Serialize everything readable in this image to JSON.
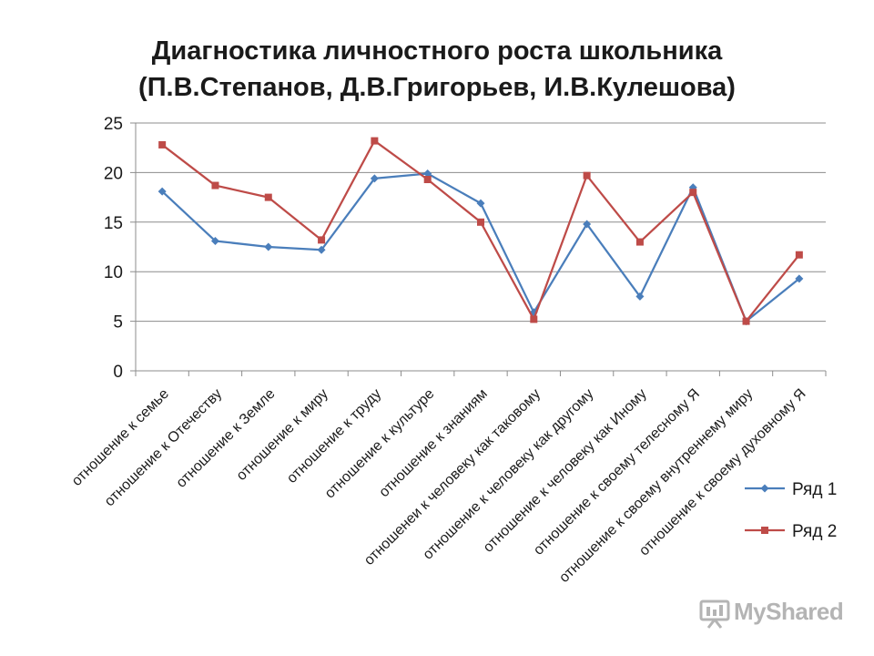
{
  "title": {
    "line1": "Диагностика личностного роста школьника",
    "line2": "(П.В.Степанов, Д.В.Григорьев, И.В.Кулешова)"
  },
  "chart_data": {
    "type": "line",
    "categories": [
      "отношение к семье",
      "отношение к Отечеству",
      "отношение к Земле",
      "отношение к миру",
      "отношение к труду",
      "отношение к культуре",
      "отношение к знаниям",
      "отношенеи к человеку как таковому",
      "отношение к человеку как другому",
      "отношение к человеку как Иному",
      "отношение к своему телесному Я",
      "отношение к своему внутреннему миру",
      "отношение к своему духовному Я"
    ],
    "y_ticks": [
      "0",
      "5",
      "10",
      "15",
      "20",
      "25"
    ],
    "ylim": [
      0,
      25
    ],
    "grid": true,
    "legend_position": "right",
    "series": [
      {
        "name": "Ряд 1",
        "color": "#4a7ebb",
        "marker": "diamond",
        "values": [
          18.1,
          13.1,
          12.5,
          12.2,
          19.4,
          19.9,
          16.9,
          5.9,
          14.8,
          7.5,
          18.5,
          5.0,
          9.3
        ]
      },
      {
        "name": "Ряд 2",
        "color": "#be4b48",
        "marker": "square",
        "values": [
          22.8,
          18.7,
          17.5,
          13.2,
          23.2,
          19.3,
          15.0,
          5.2,
          19.7,
          13.0,
          18.0,
          5.0,
          11.7
        ]
      }
    ]
  },
  "watermark": {
    "text": "MyShared",
    "icon": "presentation-board-icon"
  }
}
